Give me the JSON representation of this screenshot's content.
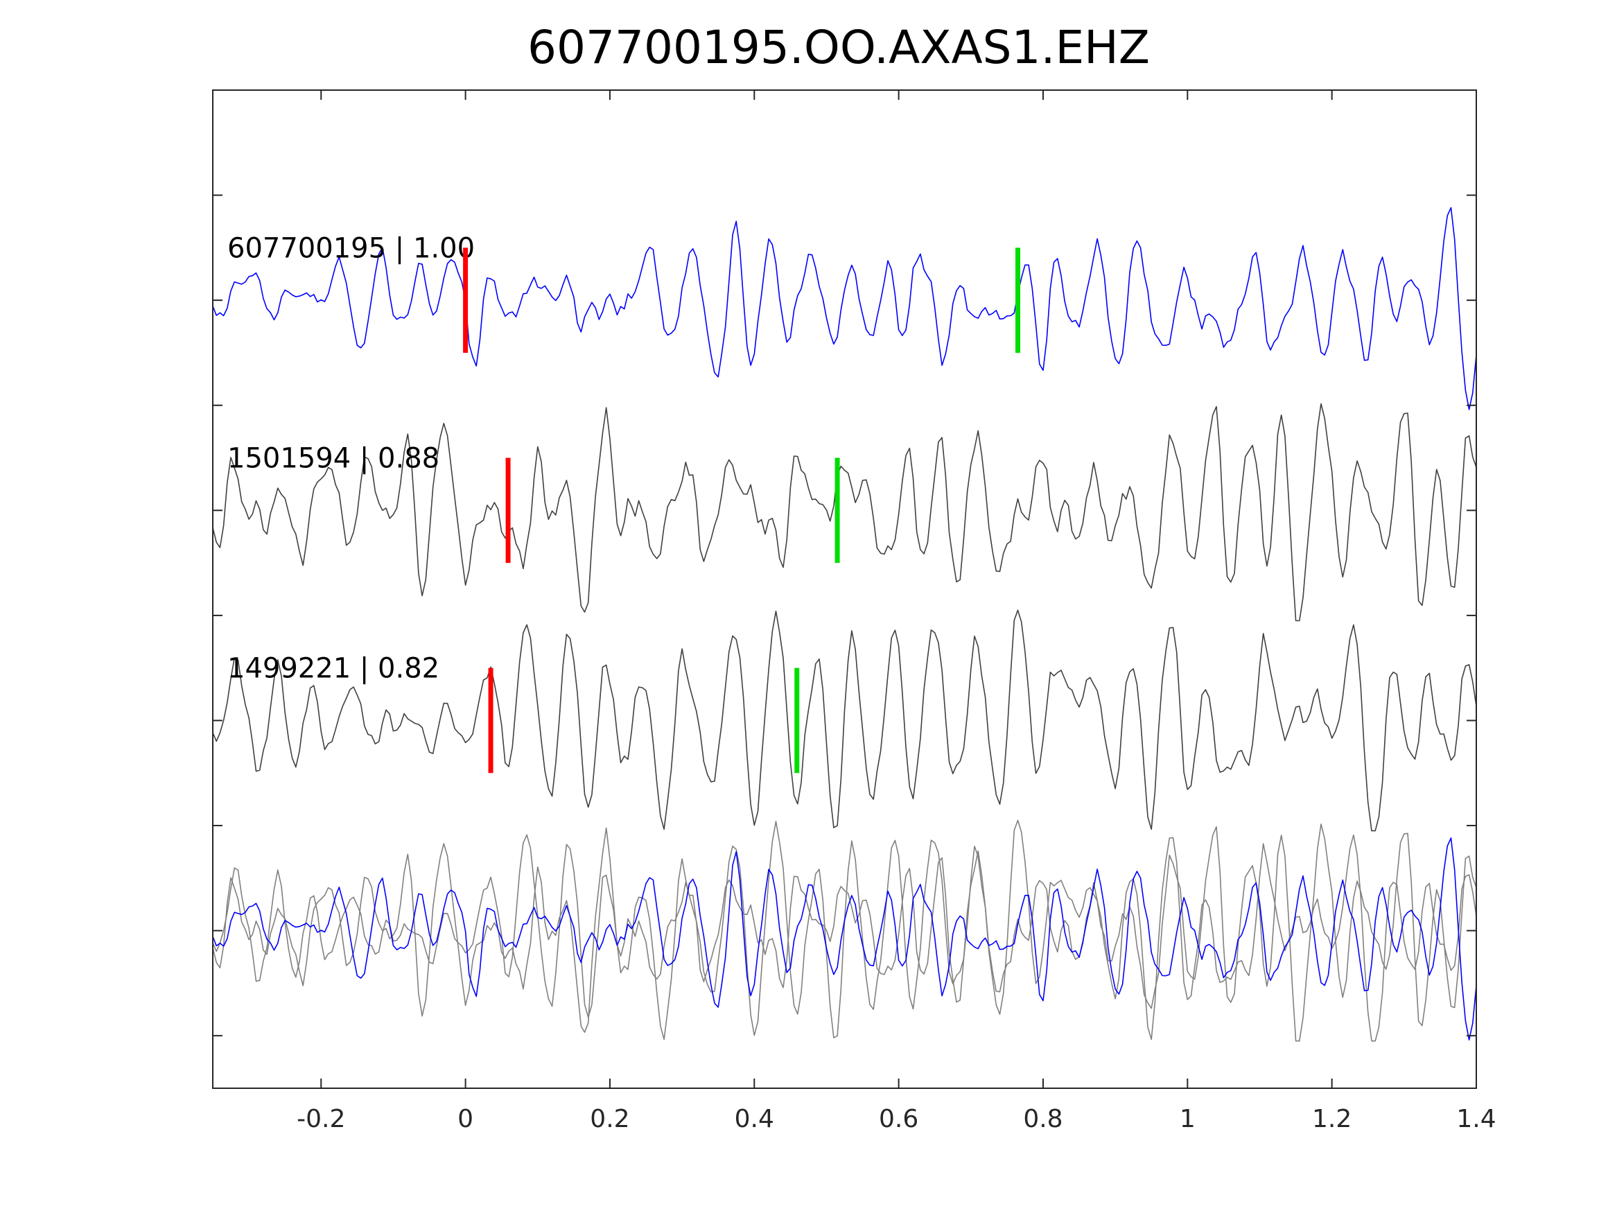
{
  "chart_data": {
    "type": "line",
    "title": "607700195.OO.AXAS1.EHZ",
    "xlabel": "",
    "ylabel": "",
    "xlim": [
      -0.35,
      1.4
    ],
    "ylim": [
      -0.5,
      9
    ],
    "xticks": [
      -0.2,
      0,
      0.2,
      0.4,
      0.6,
      0.8,
      1,
      1.2,
      1.4
    ],
    "xtick_labels": [
      "-0.2",
      "0",
      "0.2",
      "0.4",
      "0.6",
      "0.8",
      "1",
      "1.2",
      "1.4"
    ],
    "yticks": [
      0,
      1,
      2,
      3,
      4,
      5,
      6,
      7,
      8
    ],
    "grid": false,
    "sample_interval": 0.005,
    "traces": [
      {
        "label": "607700195 | 1.00",
        "offset": 7,
        "color": "#0000ff",
        "seed": 11,
        "amp_pre": 0.3,
        "amp_post": 0.8,
        "p_pick": 0.0,
        "s_pick": 0.765
      },
      {
        "label": "1501594 | 0.88",
        "offset": 5,
        "color": "#404040",
        "seed": 23,
        "amp_pre": 0.45,
        "amp_post": 0.85,
        "p_pick": 0.059,
        "s_pick": 0.515
      },
      {
        "label": "1499221 | 0.82",
        "offset": 3,
        "color": "#404040",
        "seed": 37,
        "amp_pre": 0.4,
        "amp_post": 0.85,
        "p_pick": 0.035,
        "s_pick": 0.459
      }
    ],
    "stack": {
      "offset": 1,
      "master_color": "#0000ff",
      "other_color": "#808080"
    },
    "pick_colors": {
      "p": "#ff0000",
      "s": "#00dd00"
    }
  }
}
